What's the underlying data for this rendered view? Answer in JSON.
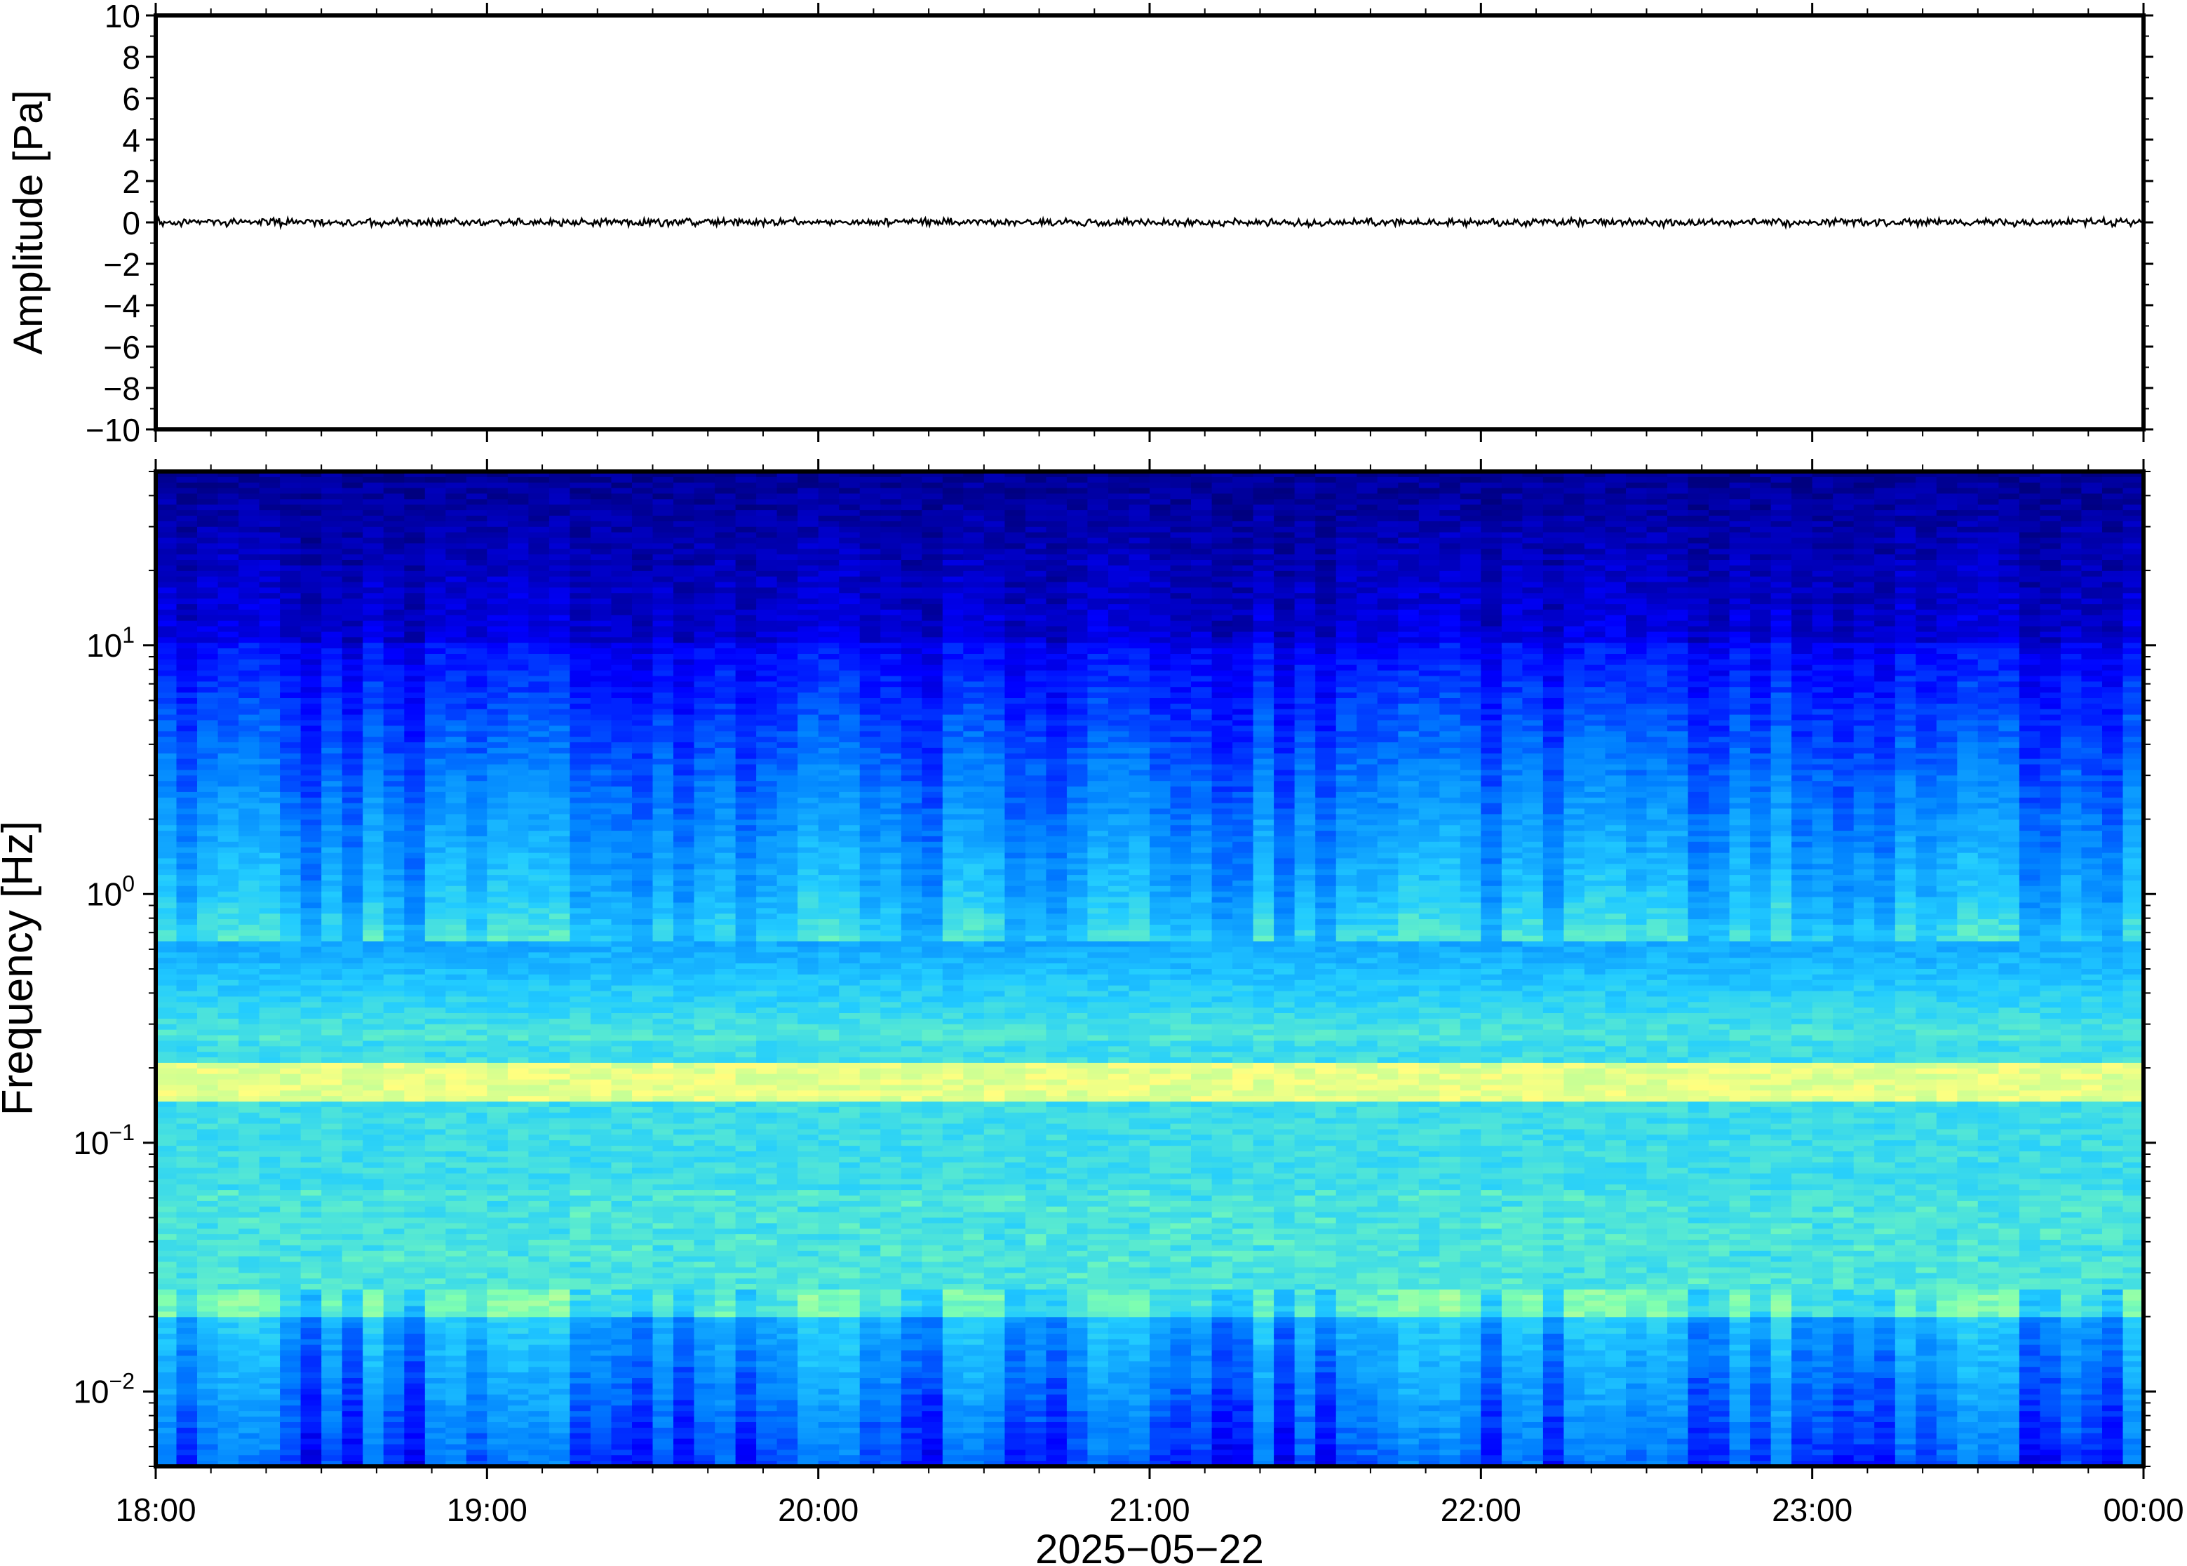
{
  "chart_data": [
    {
      "type": "line",
      "panel": "waveform",
      "ylabel": "Amplitude [Pa]",
      "ylim": [
        -10,
        10
      ],
      "yticks": [
        10,
        8,
        6,
        4,
        2,
        0,
        -2,
        -4,
        -6,
        -8,
        -10
      ],
      "ytick_labels": [
        "10",
        "8",
        "6",
        "4",
        "2",
        "0",
        "−2",
        "−4",
        "−6",
        "−8",
        "−10"
      ],
      "xlim": [
        "18:00",
        "00:00"
      ],
      "series": [
        {
          "values_note_free": true,
          "amplitude_range": [
            -0.15,
            0.15
          ]
        }
      ],
      "grid": false,
      "line_color": "#000000"
    },
    {
      "type": "heatmap",
      "panel": "spectrogram",
      "ylabel": "Frequency [Hz]",
      "yscale": "log",
      "ylim": [
        0.005,
        50
      ],
      "yticks": [
        0.01,
        0.1,
        1,
        10
      ],
      "ytick_labels": [
        {
          "base": "10",
          "exp": "−2"
        },
        {
          "base": "10",
          "exp": "−1"
        },
        {
          "base": "10",
          "exp": "0"
        },
        {
          "base": "10",
          "exp": "1"
        }
      ],
      "xlabel": "2025−05−22",
      "xticks": [
        "18:00",
        "19:00",
        "20:00",
        "21:00",
        "22:00",
        "23:00",
        "00:00"
      ],
      "xlim_hours": [
        18,
        24
      ],
      "peak_band_hz": [
        0.15,
        0.2
      ],
      "colormap": [
        "#00007f",
        "#0000ff",
        "#0080ff",
        "#22ccff",
        "#7fffb0",
        "#ffff80",
        "#ffb050"
      ]
    }
  ]
}
